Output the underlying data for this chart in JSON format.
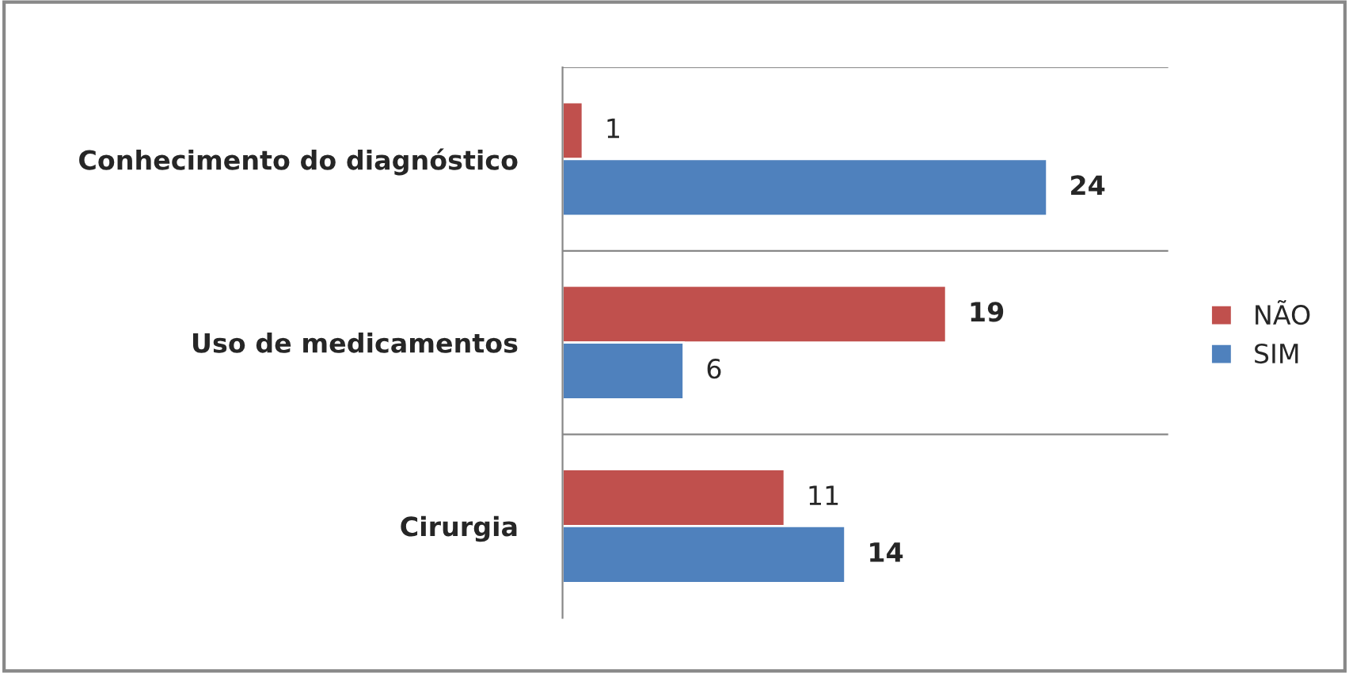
{
  "chart_data": {
    "type": "bar",
    "orientation": "horizontal",
    "categories": [
      "Conhecimento do diagnóstico",
      "Uso de medicamentos",
      "Cirurgia"
    ],
    "series": [
      {
        "name": "NÃO",
        "color": "#c0504d",
        "values": [
          1,
          19,
          11
        ]
      },
      {
        "name": "SIM",
        "color": "#4f81bd",
        "values": [
          24,
          6,
          14
        ]
      }
    ],
    "xlim": [
      0,
      30
    ],
    "tick_labels": "y",
    "data_labels": true,
    "grid": "y",
    "legend": "right"
  }
}
